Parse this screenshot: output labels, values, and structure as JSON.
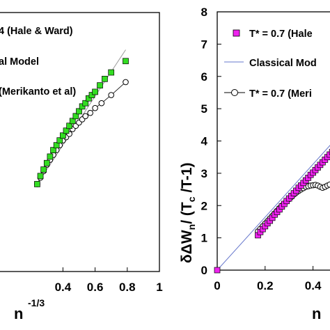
{
  "chart_data": [
    {
      "type": "scatter",
      "panel": "left",
      "xlabel": "n",
      "xlabel_sup": "-1/3",
      "ylabel": "",
      "xlim": [
        0.0,
        1.0
      ],
      "ylim": [
        0,
        8
      ],
      "x_ticks": [
        0.4,
        0.6,
        0.8,
        1
      ],
      "x_tick_labels": [
        "0.4",
        "0.6",
        "0.8",
        "1"
      ],
      "legend": [
        "4 (Hale & Ward)",
        "al Model",
        "(Merikanto et al)"
      ],
      "series": [
        {
          "name": "4 (Hale & Ward)",
          "marker": "square",
          "color": "#33dd22",
          "x": [
            0.24,
            0.26,
            0.28,
            0.3,
            0.32,
            0.34,
            0.36,
            0.38,
            0.4,
            0.42,
            0.44,
            0.46,
            0.48,
            0.5,
            0.52,
            0.54,
            0.56,
            0.58,
            0.6,
            0.63,
            0.66,
            0.7,
            0.79
          ],
          "y": [
            2.7,
            2.95,
            3.15,
            3.35,
            3.55,
            3.75,
            3.9,
            4.05,
            4.2,
            4.35,
            4.5,
            4.65,
            4.8,
            4.95,
            5.1,
            5.2,
            5.35,
            5.45,
            5.55,
            5.75,
            5.95,
            6.15,
            6.5
          ]
        },
        {
          "name": "al Model",
          "marker": "line",
          "color": "#999999",
          "x": [
            0.24,
            0.79
          ],
          "y": [
            2.7,
            6.85
          ]
        },
        {
          "name": "(Merikanto et al)",
          "marker": "circle-open",
          "color": "#000000",
          "x": [
            0.24,
            0.26,
            0.28,
            0.3,
            0.32,
            0.34,
            0.36,
            0.38,
            0.4,
            0.42,
            0.44,
            0.46,
            0.48,
            0.5,
            0.52,
            0.54,
            0.57,
            0.6,
            0.64,
            0.7,
            0.79
          ],
          "y": [
            2.7,
            2.9,
            3.1,
            3.3,
            3.45,
            3.6,
            3.75,
            3.9,
            4.05,
            4.15,
            4.25,
            4.4,
            4.5,
            4.6,
            4.7,
            4.8,
            4.9,
            5.05,
            5.2,
            5.45,
            5.85
          ]
        }
      ]
    },
    {
      "type": "scatter",
      "panel": "right",
      "xlabel": "n",
      "ylabel": "δΔW",
      "ylabel_sub": "n",
      "ylabel_mid": "/ (T",
      "ylabel_sub2": "c",
      "ylabel_end": " /T-1)",
      "xlim": [
        0,
        0.5
      ],
      "ylim": [
        0,
        8
      ],
      "x_ticks": [
        0,
        0.2,
        0.4
      ],
      "x_tick_labels": [
        "0",
        "0.2",
        "0.4"
      ],
      "y_ticks": [
        0,
        1,
        2,
        3,
        4,
        5,
        6,
        7,
        8
      ],
      "y_tick_labels": [
        "0",
        "1",
        "2",
        "3",
        "4",
        "5",
        "6",
        "7",
        "8"
      ],
      "legend": [
        "T* = 0.7 (Hale",
        "Classical Mod",
        "T* = 0.7 (Meri"
      ],
      "series": [
        {
          "name": "T* = 0.7 (Hale",
          "marker": "square",
          "color": "#ee22ee",
          "x": [
            0,
            0.17,
            0.18,
            0.19,
            0.2,
            0.21,
            0.22,
            0.23,
            0.24,
            0.25,
            0.26,
            0.27,
            0.28,
            0.29,
            0.3,
            0.31,
            0.32,
            0.33,
            0.34,
            0.35,
            0.36,
            0.37,
            0.38,
            0.39,
            0.4,
            0.41,
            0.42,
            0.43,
            0.44,
            0.45,
            0.46,
            0.47,
            0.48
          ],
          "y": [
            0,
            1.08,
            1.18,
            1.27,
            1.36,
            1.45,
            1.53,
            1.62,
            1.72,
            1.8,
            1.88,
            1.97,
            2.05,
            2.14,
            2.22,
            2.3,
            2.38,
            2.46,
            2.55,
            2.62,
            2.7,
            2.78,
            2.86,
            2.95,
            3.02,
            3.1,
            3.18,
            3.26,
            3.34,
            3.42,
            3.5,
            3.58,
            3.66
          ]
        },
        {
          "name": "Classical Mod",
          "marker": "line",
          "color": "#6677cc",
          "x": [
            0,
            0.5
          ],
          "y": [
            0,
            4.1
          ]
        },
        {
          "name": "T* = 0.7 (Meri",
          "marker": "circle-open",
          "color": "#000000",
          "x": [
            0.17,
            0.18,
            0.19,
            0.2,
            0.21,
            0.22,
            0.23,
            0.24,
            0.25,
            0.26,
            0.27,
            0.28,
            0.29,
            0.3,
            0.31,
            0.32,
            0.33,
            0.34,
            0.35,
            0.36,
            0.37,
            0.38,
            0.39,
            0.4,
            0.41,
            0.42,
            0.43,
            0.44,
            0.45,
            0.46,
            0.47
          ],
          "y": [
            1.2,
            1.28,
            1.36,
            1.44,
            1.52,
            1.6,
            1.68,
            1.76,
            1.84,
            1.92,
            2.0,
            2.06,
            2.13,
            2.2,
            2.27,
            2.34,
            2.4,
            2.45,
            2.5,
            2.54,
            2.58,
            2.6,
            2.62,
            2.63,
            2.64,
            2.62,
            2.58,
            2.55,
            2.58,
            2.62,
            2.65
          ]
        }
      ]
    }
  ]
}
